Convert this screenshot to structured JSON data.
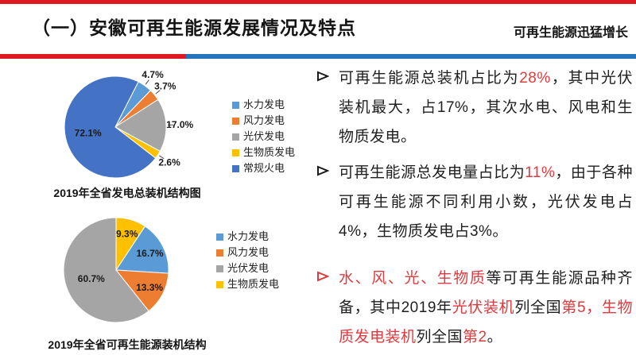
{
  "colors": {
    "accent_red": "#e03a3e",
    "bar_red": "#dd1a21",
    "bar_blue": "#2574bb",
    "text_dark": "#1f1f1f",
    "hydro_blue": "#5b9bd5",
    "wind_orange": "#ed7d31",
    "solar_gray": "#a5a5a5",
    "biomass_yellow": "#ffc000",
    "thermal_blue": "#4472c4"
  },
  "header": {
    "title": "（一）安徽可再生能源发展情况及特点",
    "topic": "可再生能源迅猛增长"
  },
  "chart_data": [
    {
      "type": "pie",
      "title": "2019年全省发电总装机结构图",
      "rotation_deg": 27,
      "legend_position": "right",
      "slices": [
        {
          "label": "水力发电",
          "value": 4.7,
          "color": "#5b9bd5",
          "placement": "outside"
        },
        {
          "label": "风力发电",
          "value": 3.7,
          "color": "#ed7d31",
          "placement": "outside"
        },
        {
          "label": "光伏发电",
          "value": 17.0,
          "color": "#a5a5a5",
          "placement": "outside"
        },
        {
          "label": "生物质发电",
          "value": 2.6,
          "color": "#ffc000",
          "placement": "outside"
        },
        {
          "label": "常规火电",
          "value": 72.1,
          "color": "#4472c4",
          "placement": "inside",
          "label_r": 0.55
        }
      ],
      "legend": [
        {
          "label": "水力发电",
          "color": "#5b9bd5"
        },
        {
          "label": "风力发电",
          "color": "#ed7d31"
        },
        {
          "label": "光伏发电",
          "color": "#a5a5a5"
        },
        {
          "label": "生物质发电",
          "color": "#ffc000"
        },
        {
          "label": "常规火电",
          "color": "#4472c4"
        }
      ]
    },
    {
      "type": "pie",
      "title": "2019年全省可再生能源装机结构",
      "rotation_deg": 33.5,
      "legend_position": "right",
      "slices": [
        {
          "label": "水力发电",
          "value": 16.7,
          "color": "#5b9bd5",
          "placement": "inside",
          "label_r": 0.72
        },
        {
          "label": "风力发电",
          "value": 13.3,
          "color": "#ed7d31",
          "placement": "inside",
          "label_r": 0.72
        },
        {
          "label": "光伏发电",
          "value": 60.7,
          "color": "#a5a5a5",
          "placement": "inside",
          "label_r": 0.5
        },
        {
          "label": "生物质发电",
          "value": 9.3,
          "color": "#ffc000",
          "placement": "inside",
          "label_r": 0.72
        }
      ],
      "legend": [
        {
          "label": "水力发电",
          "color": "#5b9bd5"
        },
        {
          "label": "风力发电",
          "color": "#ed7d31"
        },
        {
          "label": "光伏发电",
          "color": "#a5a5a5"
        },
        {
          "label": "生物质发电",
          "color": "#ffc000"
        }
      ]
    }
  ],
  "bullets": [
    {
      "marker_color": "#1a1a1a",
      "segments": [
        {
          "t": "可再生能源总装机占比为"
        },
        {
          "t": "28%",
          "red": true
        },
        {
          "t": "，其中光伏装机最大，占17%，其次水电、风电和生物质发电。"
        }
      ]
    },
    {
      "marker_color": "#1a1a1a",
      "segments": [
        {
          "t": "可再生能源总发电量占比为"
        },
        {
          "t": "11%",
          "red": true
        },
        {
          "t": "，由于各种可再生能源不同利用小数，光伏发电占4%，生物质发电占3%。"
        }
      ]
    },
    {
      "marker_color": "#e03a3e",
      "segments": [
        {
          "t": "水、风、光、生物质",
          "red": true
        },
        {
          "t": "等可再生能源品种齐备，其中2019年"
        },
        {
          "t": "光伏装机",
          "red": true
        },
        {
          "t": "列全国"
        },
        {
          "t": "第5，生物质发电装机",
          "red": true
        },
        {
          "t": "列全国"
        },
        {
          "t": "第2",
          "red": true
        },
        {
          "t": "。"
        }
      ]
    }
  ]
}
